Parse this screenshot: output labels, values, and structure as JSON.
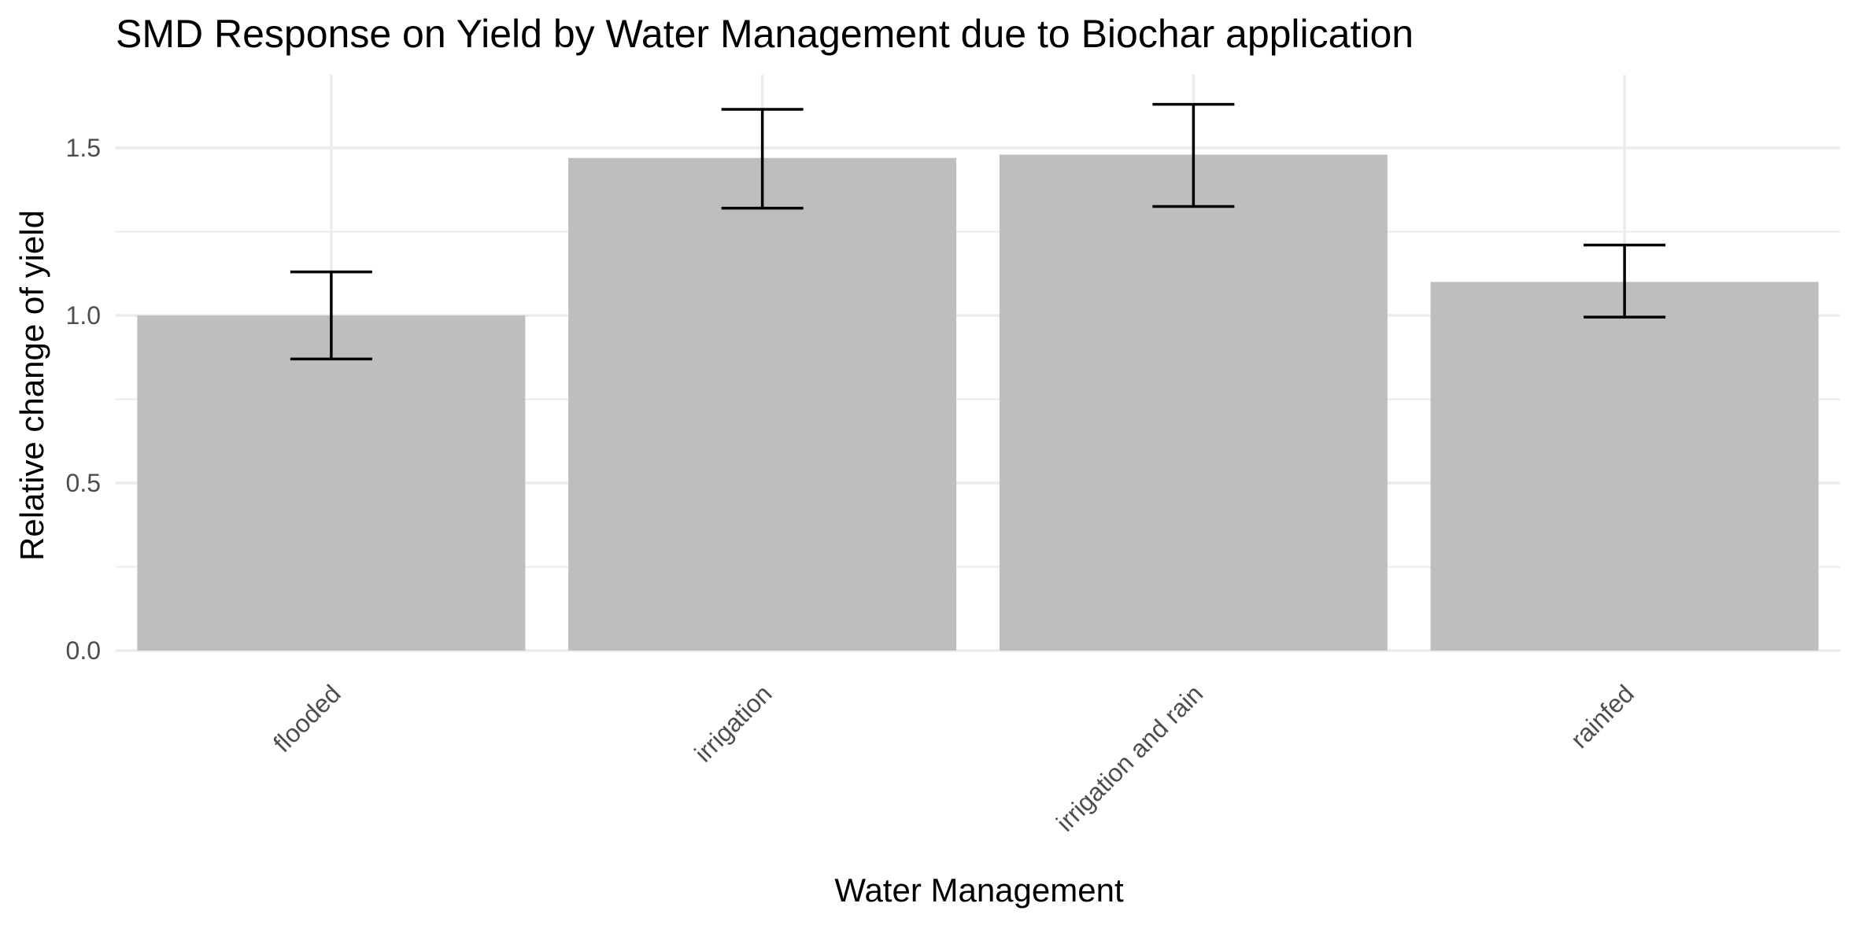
{
  "chart_data": {
    "type": "bar",
    "title": "SMD Response on Yield by Water Management due to Biochar application",
    "xlabel": "Water Management",
    "ylabel": "Relative change of yield",
    "categories": [
      "flooded",
      "irrigation",
      "irrigation and rain",
      "rainfed"
    ],
    "values": [
      1.0,
      1.47,
      1.48,
      1.1
    ],
    "error_low": [
      0.87,
      1.32,
      1.325,
      0.995
    ],
    "error_high": [
      1.13,
      1.615,
      1.63,
      1.21
    ],
    "ylim": [
      0,
      1.72
    ],
    "yticks": [
      0.0,
      0.5,
      1.0,
      1.5
    ],
    "ytick_labels": [
      "0.0",
      "0.5",
      "1.0",
      "1.5"
    ],
    "y_minor_ticks": [
      0.25,
      0.75,
      1.25
    ],
    "bar_color": "#bebebe",
    "error_bar_color": "#000000",
    "grid": true,
    "legend": "none",
    "x_tick_rotation_deg": 45
  }
}
